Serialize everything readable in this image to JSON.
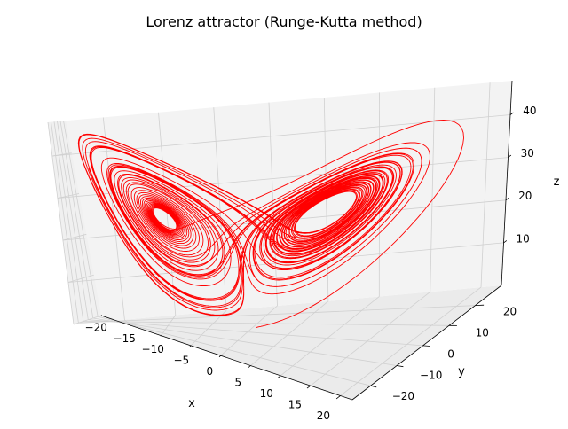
{
  "chart_data": {
    "type": "line3d",
    "title": "Lorenz attractor (Runge-Kutta method)",
    "xlabel": "x",
    "ylabel": "y",
    "zlabel": "z",
    "xlim": [
      -20,
      22
    ],
    "ylim": [
      -27,
      30
    ],
    "zlim": [
      0,
      48
    ],
    "xticks": [
      -20,
      -15,
      -10,
      -5,
      0,
      5,
      10,
      15,
      20
    ],
    "yticks": [
      -20,
      -10,
      0,
      10,
      20
    ],
    "zticks": [
      10,
      20,
      30,
      40
    ],
    "grid": true,
    "legend": "none",
    "series": [
      {
        "color": "#ff0000",
        "system": "lorenz",
        "sigma": 10,
        "rho": 28,
        "beta": 2.6667,
        "initial": [
          1,
          1,
          1
        ],
        "dt": 0.005,
        "steps": 12000
      }
    ]
  }
}
